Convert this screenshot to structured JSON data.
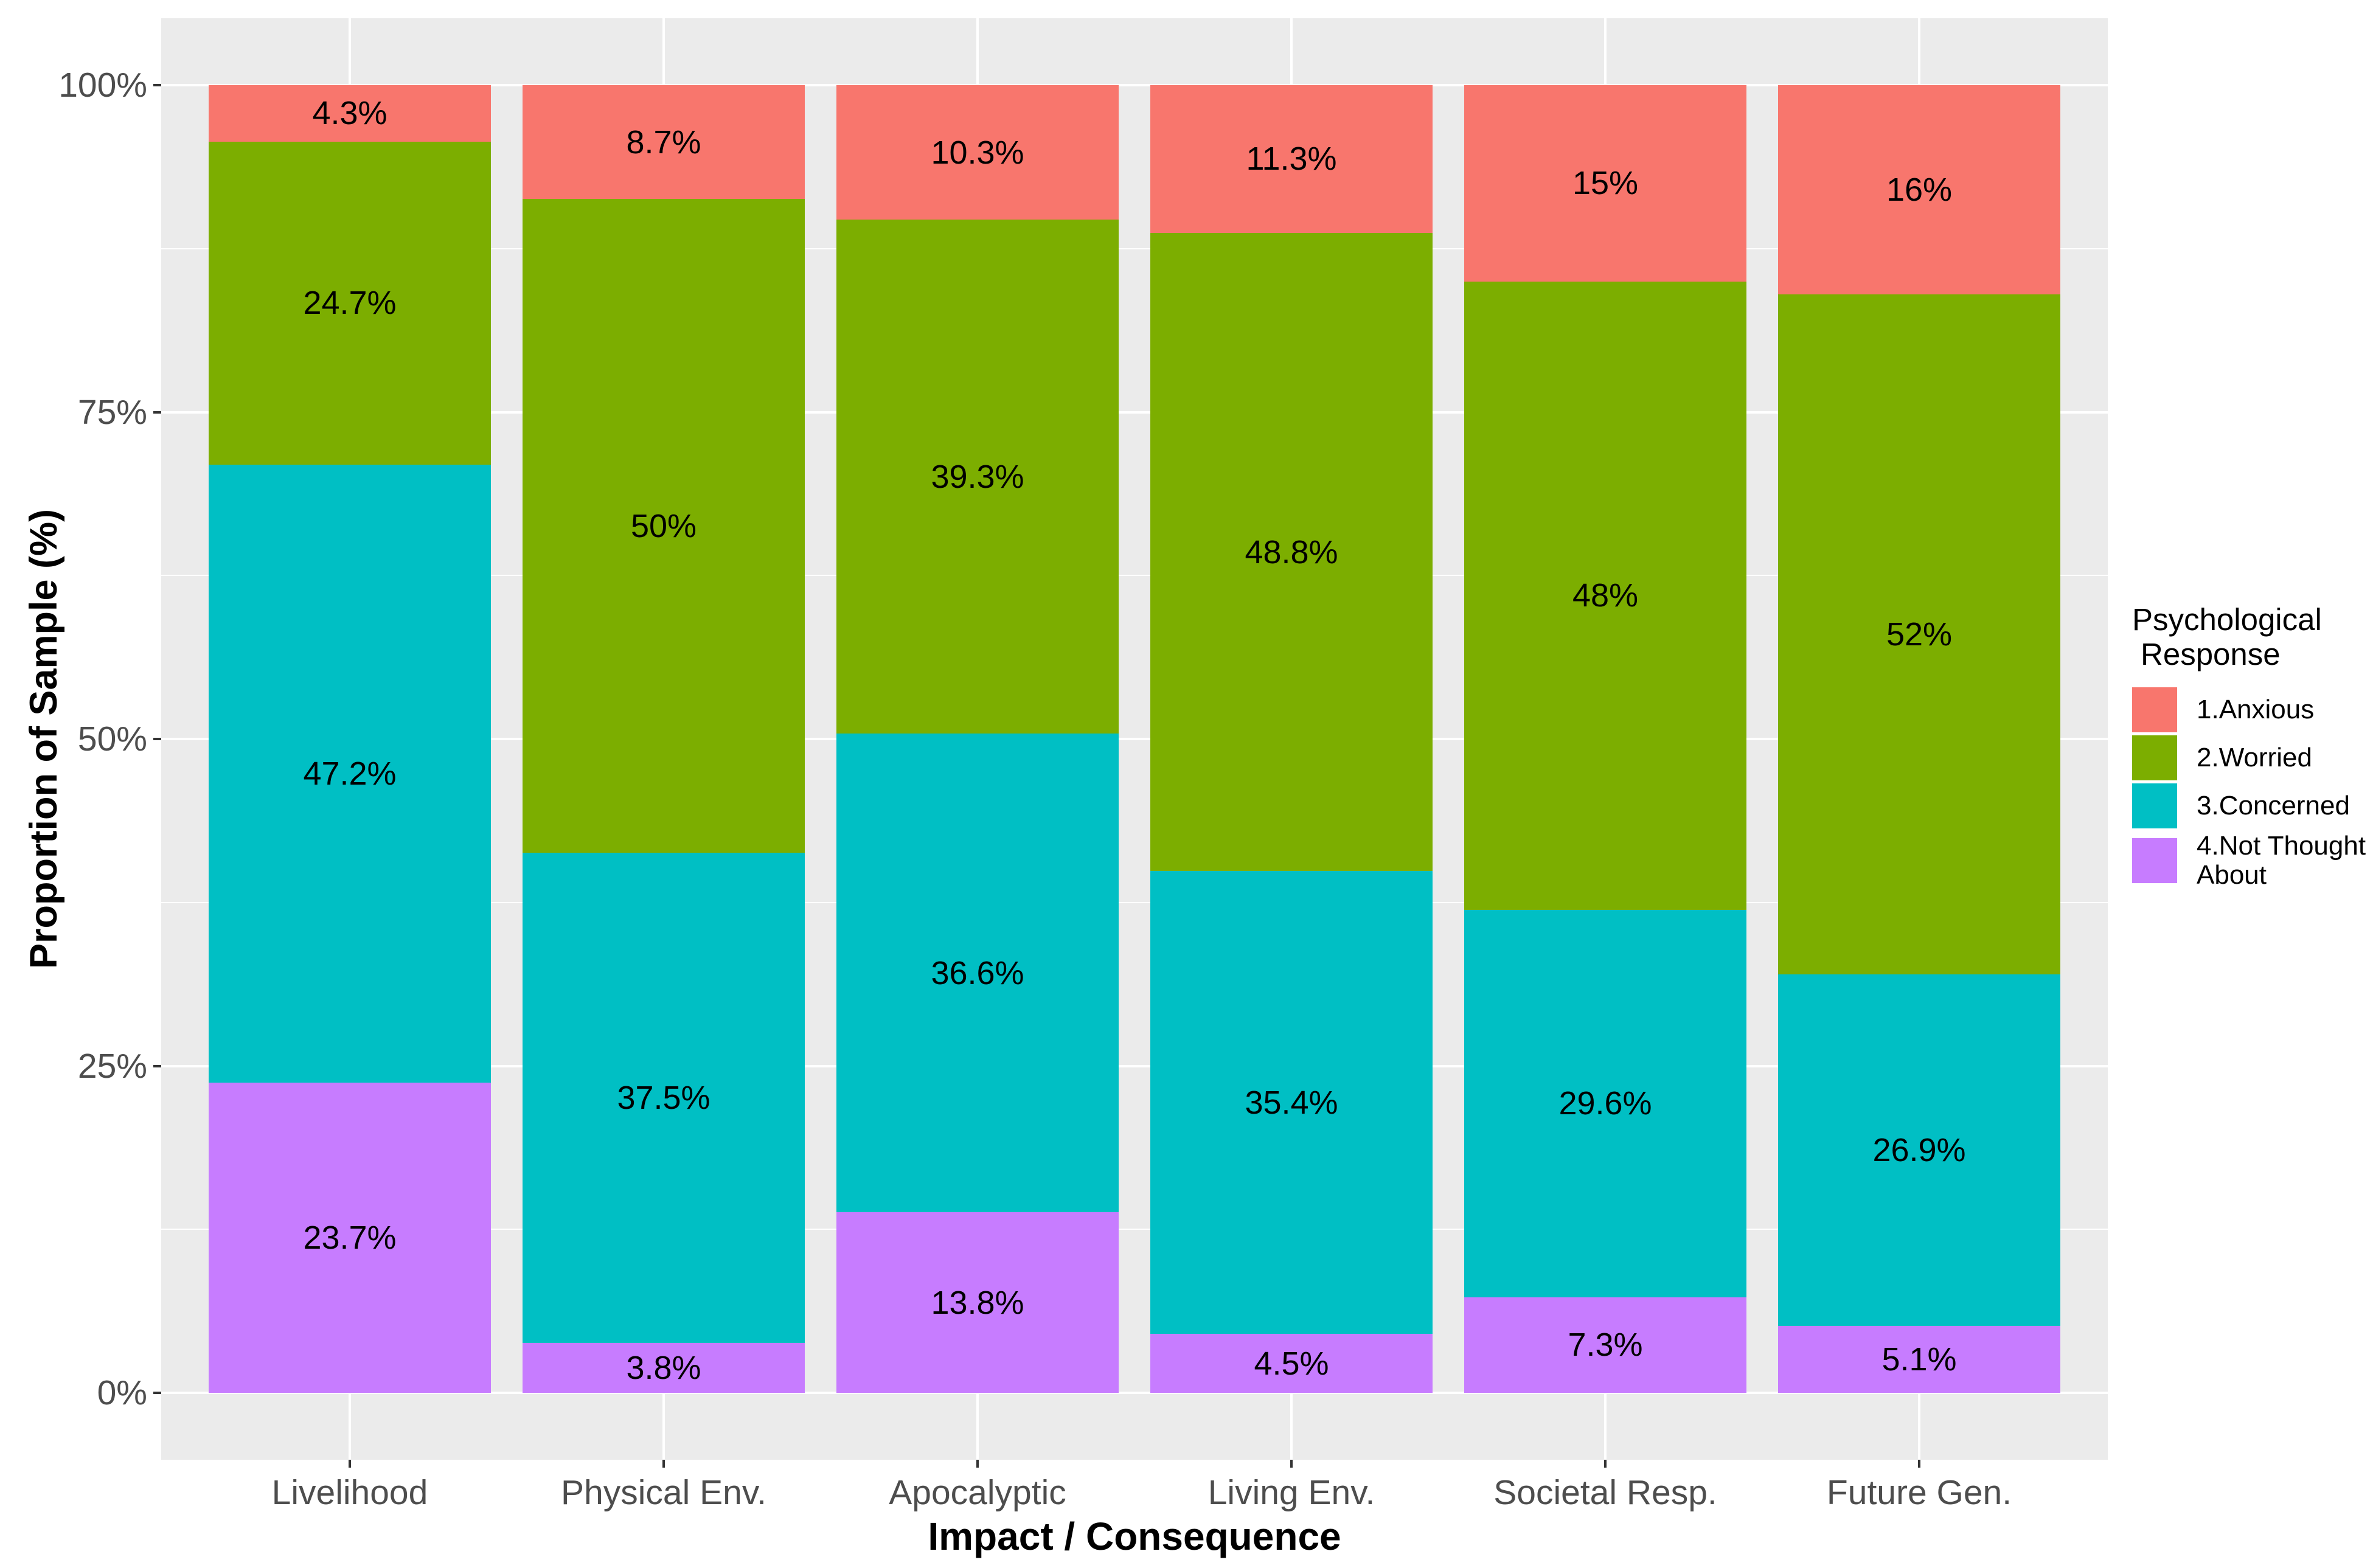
{
  "chart_data": {
    "type": "bar",
    "stacked": true,
    "stack_mode": "fill",
    "title": "",
    "xlabel": "Impact / Consequence",
    "ylabel": "Proportion of Sample (%)",
    "categories": [
      "Livelihood",
      "Physical Env.",
      "Apocalyptic",
      "Living Env.",
      "Societal Resp.",
      "Future Gen."
    ],
    "series": [
      {
        "name": "1.Anxious",
        "color": "#F8766D",
        "values": [
          4.3,
          8.7,
          10.3,
          11.3,
          15,
          16
        ],
        "labels": [
          "4.3%",
          "8.7%",
          "10.3%",
          "11.3%",
          "15%",
          "16%"
        ]
      },
      {
        "name": "2.Worried",
        "color": "#7CAE00",
        "values": [
          24.7,
          50,
          39.3,
          48.8,
          48,
          52
        ],
        "labels": [
          "24.7%",
          "50%",
          "39.3%",
          "48.8%",
          "48%",
          "52%"
        ]
      },
      {
        "name": "3.Concerned",
        "color": "#00BFC4",
        "values": [
          47.2,
          37.5,
          36.6,
          35.4,
          29.6,
          26.9
        ],
        "labels": [
          "47.2%",
          "37.5%",
          "36.6%",
          "35.4%",
          "29.6%",
          "26.9%"
        ]
      },
      {
        "name": "4.Not Thought About",
        "color": "#C77CFF",
        "values": [
          23.7,
          3.8,
          13.8,
          4.5,
          7.3,
          5.1
        ],
        "labels": [
          "23.7%",
          "3.8%",
          "13.8%",
          "4.5%",
          "7.3%",
          "5.1%"
        ]
      }
    ],
    "ylim": [
      0,
      100
    ],
    "y_ticks": [
      {
        "pct": 0,
        "label": "0%"
      },
      {
        "pct": 25,
        "label": "25%"
      },
      {
        "pct": 50,
        "label": "50%"
      },
      {
        "pct": 75,
        "label": "75%"
      },
      {
        "pct": 100,
        "label": "100%"
      }
    ],
    "grid": {
      "major": [
        0,
        25,
        50,
        75,
        100
      ],
      "minor": [
        12.5,
        37.5,
        62.5,
        87.5
      ],
      "vertical_at_categories": true
    },
    "legend_position": "right"
  },
  "legend": {
    "title_line1": "Psychological",
    "title_line2": "Response",
    "items": [
      {
        "label": "1.Anxious",
        "color": "#F8766D"
      },
      {
        "label": "2.Worried",
        "color": "#7CAE00"
      },
      {
        "label": "3.Concerned",
        "color": "#00BFC4"
      },
      {
        "label": "4.Not Thought\n About",
        "color": "#C77CFF"
      }
    ]
  },
  "style": {
    "panel_bg": "#EBEBEB",
    "grid_color": "#FFFFFF",
    "axis_text_color": "#4D4D4D",
    "tick_color": "#333333",
    "title_color": "#000000",
    "bar_label_color": "#000000"
  }
}
